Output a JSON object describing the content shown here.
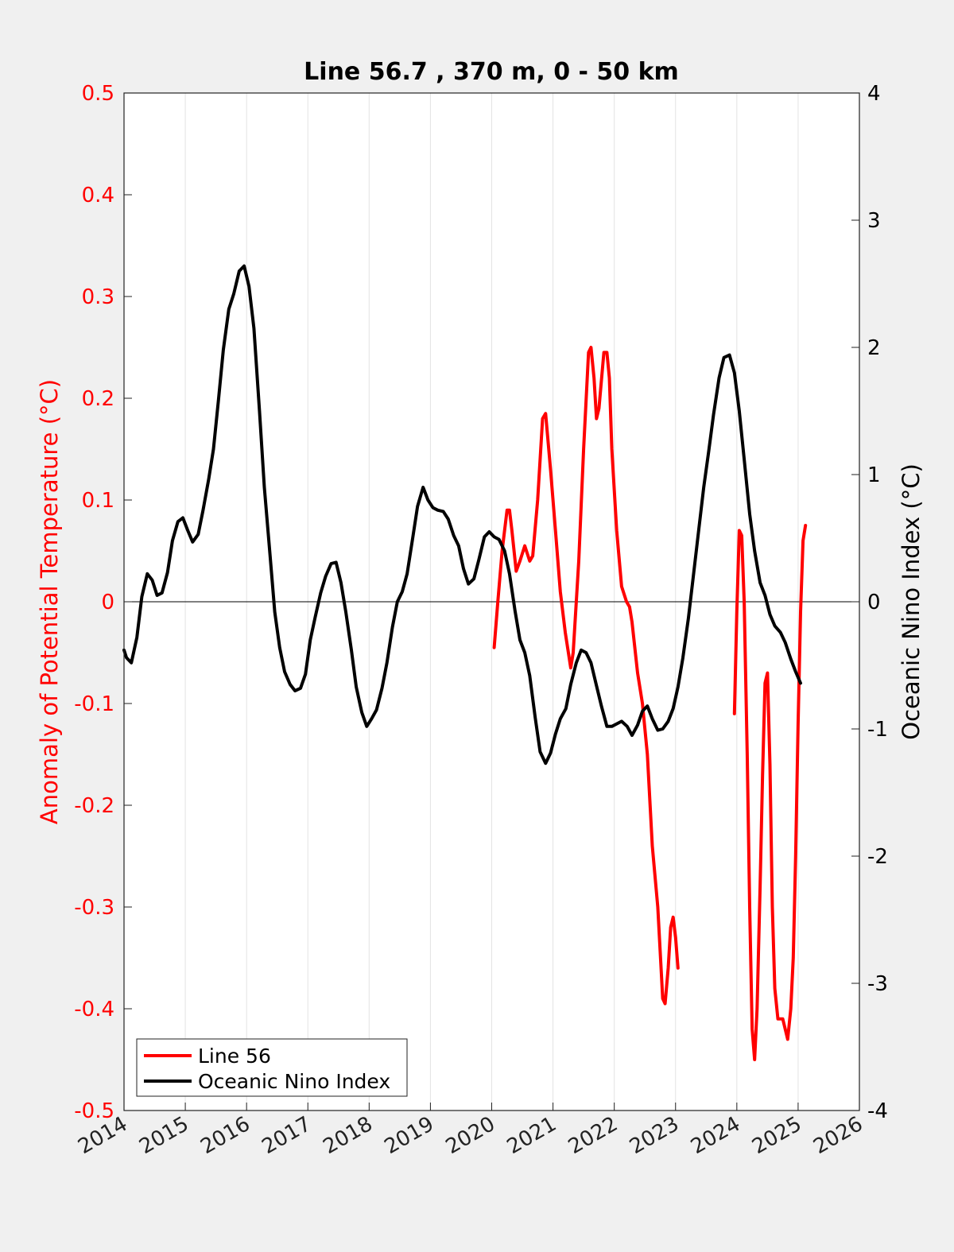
{
  "chart_data": {
    "type": "line",
    "title": "Line 56.7 , 370 m, 0 - 50 km",
    "xlim": [
      2014,
      2026
    ],
    "x_ticks": [
      "2014",
      "2015",
      "2016",
      "2017",
      "2018",
      "2019",
      "2020",
      "2021",
      "2022",
      "2023",
      "2024",
      "2025",
      "2026"
    ],
    "left_axis": {
      "label": "Anomaly of Potential Temperature (°C)",
      "ylim": [
        -0.5,
        0.5
      ],
      "ticks": [
        "0.5",
        "0.4",
        "0.3",
        "0.2",
        "0.1",
        "0",
        "-0.1",
        "-0.2",
        "-0.3",
        "-0.4",
        "-0.5"
      ],
      "tick_values": [
        0.5,
        0.4,
        0.3,
        0.2,
        0.1,
        0,
        -0.1,
        -0.2,
        -0.3,
        -0.4,
        -0.5
      ],
      "color": "#ff0000"
    },
    "right_axis": {
      "label": "Oceanic Nino Index (°C)",
      "ylim": [
        -4,
        4
      ],
      "ticks": [
        "4",
        "3",
        "2",
        "1",
        "0",
        "-1",
        "-2",
        "-3",
        "-4"
      ],
      "tick_values": [
        4,
        3,
        2,
        1,
        0,
        -1,
        -2,
        -3,
        -4
      ],
      "color": "#000000"
    },
    "grid": "vertical",
    "legend_position": "bottom-left",
    "series": [
      {
        "name": "Line 56",
        "axis": "left",
        "color": "#ff0000",
        "segments": [
          [
            [
              2020.04,
              -0.045
            ],
            [
              2020.1,
              0.0
            ],
            [
              2020.17,
              0.05
            ],
            [
              2020.25,
              0.09
            ],
            [
              2020.29,
              0.09
            ],
            [
              2020.33,
              0.07
            ],
            [
              2020.4,
              0.03
            ],
            [
              2020.46,
              0.04
            ],
            [
              2020.54,
              0.055
            ],
            [
              2020.62,
              0.04
            ],
            [
              2020.67,
              0.045
            ],
            [
              2020.75,
              0.1
            ],
            [
              2020.83,
              0.18
            ],
            [
              2020.88,
              0.185
            ],
            [
              2020.96,
              0.13
            ],
            [
              2021.04,
              0.07
            ],
            [
              2021.12,
              0.01
            ],
            [
              2021.2,
              -0.03
            ],
            [
              2021.29,
              -0.065
            ],
            [
              2021.33,
              -0.05
            ],
            [
              2021.42,
              0.04
            ],
            [
              2021.5,
              0.15
            ],
            [
              2021.58,
              0.245
            ],
            [
              2021.62,
              0.25
            ],
            [
              2021.67,
              0.22
            ],
            [
              2021.71,
              0.18
            ],
            [
              2021.75,
              0.19
            ],
            [
              2021.83,
              0.245
            ],
            [
              2021.88,
              0.245
            ],
            [
              2021.92,
              0.22
            ],
            [
              2021.96,
              0.15
            ],
            [
              2022.04,
              0.07
            ],
            [
              2022.12,
              0.015
            ],
            [
              2022.2,
              0.0
            ],
            [
              2022.25,
              -0.005
            ],
            [
              2022.29,
              -0.02
            ],
            [
              2022.38,
              -0.07
            ],
            [
              2022.46,
              -0.1
            ],
            [
              2022.54,
              -0.15
            ],
            [
              2022.62,
              -0.24
            ],
            [
              2022.71,
              -0.3
            ],
            [
              2022.79,
              -0.39
            ],
            [
              2022.83,
              -0.395
            ],
            [
              2022.88,
              -0.36
            ],
            [
              2022.92,
              -0.32
            ],
            [
              2022.96,
              -0.31
            ],
            [
              2023.0,
              -0.33
            ],
            [
              2023.04,
              -0.36
            ]
          ],
          [
            [
              2023.96,
              -0.11
            ],
            [
              2024.0,
              -0.01
            ],
            [
              2024.04,
              0.07
            ],
            [
              2024.08,
              0.065
            ],
            [
              2024.12,
              0.0
            ],
            [
              2024.17,
              -0.15
            ],
            [
              2024.21,
              -0.3
            ],
            [
              2024.25,
              -0.42
            ],
            [
              2024.29,
              -0.45
            ],
            [
              2024.33,
              -0.4
            ],
            [
              2024.38,
              -0.28
            ],
            [
              2024.42,
              -0.17
            ],
            [
              2024.46,
              -0.08
            ],
            [
              2024.5,
              -0.07
            ],
            [
              2024.54,
              -0.16
            ],
            [
              2024.58,
              -0.3
            ],
            [
              2024.62,
              -0.38
            ],
            [
              2024.67,
              -0.41
            ],
            [
              2024.71,
              -0.41
            ],
            [
              2024.75,
              -0.41
            ],
            [
              2024.79,
              -0.42
            ],
            [
              2024.83,
              -0.43
            ],
            [
              2024.88,
              -0.4
            ],
            [
              2024.92,
              -0.35
            ],
            [
              2024.96,
              -0.25
            ],
            [
              2025.0,
              -0.12
            ],
            [
              2025.04,
              -0.01
            ],
            [
              2025.08,
              0.06
            ],
            [
              2025.12,
              0.075
            ]
          ]
        ]
      },
      {
        "name": "Oceanic Nino Index",
        "axis": "right",
        "color": "#000000",
        "segments": [
          [
            [
              2014.0,
              -0.38
            ],
            [
              2014.04,
              -0.44
            ],
            [
              2014.12,
              -0.48
            ],
            [
              2014.21,
              -0.28
            ],
            [
              2014.29,
              0.04
            ],
            [
              2014.38,
              0.22
            ],
            [
              2014.46,
              0.17
            ],
            [
              2014.54,
              0.05
            ],
            [
              2014.62,
              0.07
            ],
            [
              2014.71,
              0.23
            ],
            [
              2014.79,
              0.48
            ],
            [
              2014.88,
              0.63
            ],
            [
              2014.96,
              0.66
            ],
            [
              2015.04,
              0.56
            ],
            [
              2015.12,
              0.47
            ],
            [
              2015.21,
              0.53
            ],
            [
              2015.29,
              0.72
            ],
            [
              2015.38,
              0.96
            ],
            [
              2015.46,
              1.2
            ],
            [
              2015.54,
              1.58
            ],
            [
              2015.62,
              1.98
            ],
            [
              2015.71,
              2.3
            ],
            [
              2015.79,
              2.42
            ],
            [
              2015.88,
              2.6
            ],
            [
              2015.96,
              2.64
            ],
            [
              2016.04,
              2.48
            ],
            [
              2016.12,
              2.15
            ],
            [
              2016.21,
              1.5
            ],
            [
              2016.29,
              0.9
            ],
            [
              2016.38,
              0.38
            ],
            [
              2016.46,
              -0.08
            ],
            [
              2016.54,
              -0.36
            ],
            [
              2016.62,
              -0.55
            ],
            [
              2016.71,
              -0.65
            ],
            [
              2016.79,
              -0.7
            ],
            [
              2016.88,
              -0.68
            ],
            [
              2016.96,
              -0.57
            ],
            [
              2017.04,
              -0.3
            ],
            [
              2017.12,
              -0.12
            ],
            [
              2017.21,
              0.07
            ],
            [
              2017.29,
              0.2
            ],
            [
              2017.38,
              0.3
            ],
            [
              2017.46,
              0.31
            ],
            [
              2017.54,
              0.15
            ],
            [
              2017.62,
              -0.08
            ],
            [
              2017.71,
              -0.38
            ],
            [
              2017.79,
              -0.67
            ],
            [
              2017.88,
              -0.87
            ],
            [
              2017.96,
              -0.98
            ],
            [
              2018.04,
              -0.92
            ],
            [
              2018.12,
              -0.85
            ],
            [
              2018.21,
              -0.68
            ],
            [
              2018.29,
              -0.48
            ],
            [
              2018.38,
              -0.2
            ],
            [
              2018.46,
              0.0
            ],
            [
              2018.54,
              0.08
            ],
            [
              2018.62,
              0.22
            ],
            [
              2018.71,
              0.5
            ],
            [
              2018.79,
              0.75
            ],
            [
              2018.88,
              0.9
            ],
            [
              2018.96,
              0.8
            ],
            [
              2019.04,
              0.74
            ],
            [
              2019.12,
              0.72
            ],
            [
              2019.21,
              0.71
            ],
            [
              2019.29,
              0.65
            ],
            [
              2019.38,
              0.52
            ],
            [
              2019.46,
              0.44
            ],
            [
              2019.54,
              0.26
            ],
            [
              2019.62,
              0.14
            ],
            [
              2019.71,
              0.18
            ],
            [
              2019.79,
              0.33
            ],
            [
              2019.88,
              0.51
            ],
            [
              2019.96,
              0.55
            ],
            [
              2020.04,
              0.51
            ],
            [
              2020.12,
              0.49
            ],
            [
              2020.21,
              0.4
            ],
            [
              2020.29,
              0.22
            ],
            [
              2020.38,
              -0.07
            ],
            [
              2020.46,
              -0.3
            ],
            [
              2020.54,
              -0.4
            ],
            [
              2020.62,
              -0.58
            ],
            [
              2020.71,
              -0.91
            ],
            [
              2020.79,
              -1.18
            ],
            [
              2020.88,
              -1.27
            ],
            [
              2020.96,
              -1.19
            ],
            [
              2021.04,
              -1.04
            ],
            [
              2021.12,
              -0.92
            ],
            [
              2021.21,
              -0.84
            ],
            [
              2021.29,
              -0.65
            ],
            [
              2021.38,
              -0.48
            ],
            [
              2021.46,
              -0.38
            ],
            [
              2021.54,
              -0.4
            ],
            [
              2021.62,
              -0.48
            ],
            [
              2021.71,
              -0.66
            ],
            [
              2021.79,
              -0.82
            ],
            [
              2021.88,
              -0.98
            ],
            [
              2021.96,
              -0.98
            ],
            [
              2022.04,
              -0.96
            ],
            [
              2022.12,
              -0.94
            ],
            [
              2022.21,
              -0.98
            ],
            [
              2022.29,
              -1.05
            ],
            [
              2022.38,
              -0.97
            ],
            [
              2022.46,
              -0.86
            ],
            [
              2022.54,
              -0.82
            ],
            [
              2022.62,
              -0.92
            ],
            [
              2022.71,
              -1.01
            ],
            [
              2022.79,
              -1.0
            ],
            [
              2022.88,
              -0.94
            ],
            [
              2022.96,
              -0.84
            ],
            [
              2023.04,
              -0.67
            ],
            [
              2023.12,
              -0.44
            ],
            [
              2023.21,
              -0.13
            ],
            [
              2023.29,
              0.2
            ],
            [
              2023.38,
              0.57
            ],
            [
              2023.46,
              0.9
            ],
            [
              2023.54,
              1.18
            ],
            [
              2023.62,
              1.47
            ],
            [
              2023.71,
              1.76
            ],
            [
              2023.79,
              1.92
            ],
            [
              2023.88,
              1.94
            ],
            [
              2023.96,
              1.8
            ],
            [
              2024.04,
              1.5
            ],
            [
              2024.12,
              1.12
            ],
            [
              2024.21,
              0.69
            ],
            [
              2024.29,
              0.4
            ],
            [
              2024.38,
              0.15
            ],
            [
              2024.46,
              0.05
            ],
            [
              2024.54,
              -0.1
            ],
            [
              2024.62,
              -0.19
            ],
            [
              2024.71,
              -0.24
            ],
            [
              2024.79,
              -0.32
            ],
            [
              2024.88,
              -0.45
            ],
            [
              2024.96,
              -0.55
            ],
            [
              2025.04,
              -0.64
            ]
          ]
        ]
      }
    ]
  }
}
